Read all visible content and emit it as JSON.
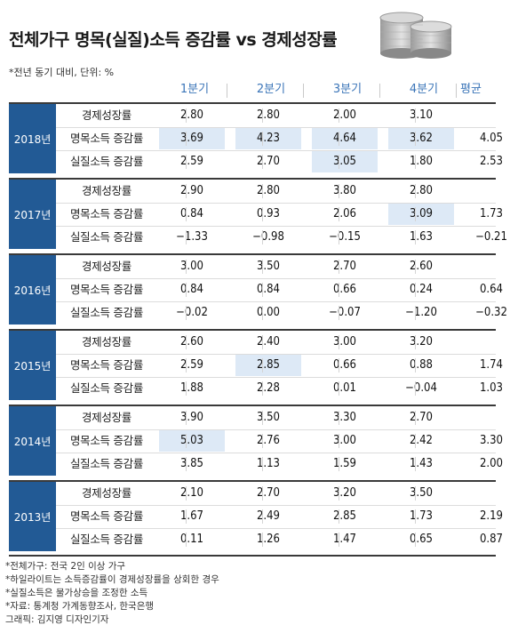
{
  "title": "전체가구 명목(실질)소득 증감률 vs 경제성장률",
  "subtitle": "*전년 동기 대비, 단위: %",
  "columns": [
    "1분기",
    "2분기",
    "3분기",
    "4분기",
    "평균"
  ],
  "colors": {
    "year_bg": "#225a95",
    "header_text": "#3b75b8",
    "highlight": "#dde9f6"
  },
  "groups": [
    {
      "year": "2018년",
      "rows": [
        {
          "label": "경제성장률",
          "values": [
            "2.80",
            "2.80",
            "2.00",
            "3.10",
            ""
          ]
        },
        {
          "label": "명목소득 증감률",
          "values": [
            "3.69",
            "4.23",
            "4.64",
            "3.62",
            "4.05"
          ]
        },
        {
          "label": "실질소득 증감률",
          "values": [
            "2.59",
            "2.70",
            "3.05",
            "1.80",
            "2.53"
          ]
        }
      ]
    },
    {
      "year": "2017년",
      "rows": [
        {
          "label": "경제성장률",
          "values": [
            "2.90",
            "2.80",
            "3.80",
            "2.80",
            ""
          ]
        },
        {
          "label": "명목소득 증감률",
          "values": [
            "0.84",
            "0.93",
            "2.06",
            "3.09",
            "1.73"
          ]
        },
        {
          "label": "실질소득 증감률",
          "values": [
            "−1.33",
            "−0.98",
            "−0.15",
            "1.63",
            "−0.21"
          ]
        }
      ]
    },
    {
      "year": "2016년",
      "rows": [
        {
          "label": "경제성장률",
          "values": [
            "3.00",
            "3.50",
            "2.70",
            "2.60",
            ""
          ]
        },
        {
          "label": "명목소득 증감률",
          "values": [
            "0.84",
            "0.84",
            "0.66",
            "0.24",
            "0.64"
          ]
        },
        {
          "label": "실질소득 증감률",
          "values": [
            "−0.02",
            "0.00",
            "−0.07",
            "−1.20",
            "−0.32"
          ]
        }
      ]
    },
    {
      "year": "2015년",
      "rows": [
        {
          "label": "경제성장률",
          "values": [
            "2.60",
            "2.40",
            "3.00",
            "3.20",
            ""
          ]
        },
        {
          "label": "명목소득 증감률",
          "values": [
            "2.59",
            "2.85",
            "0.66",
            "0.88",
            "1.74"
          ]
        },
        {
          "label": "실질소득 증감률",
          "values": [
            "1.88",
            "2.28",
            "0.01",
            "−0.04",
            "1.03"
          ]
        }
      ]
    },
    {
      "year": "2014년",
      "rows": [
        {
          "label": "경제성장률",
          "values": [
            "3.90",
            "3.50",
            "3.30",
            "2.70",
            ""
          ]
        },
        {
          "label": "명목소득 증감률",
          "values": [
            "5.03",
            "2.76",
            "3.00",
            "2.42",
            "3.30"
          ]
        },
        {
          "label": "실질소득 증감률",
          "values": [
            "3.85",
            "1.13",
            "1.59",
            "1.43",
            "2.00"
          ]
        }
      ]
    },
    {
      "year": "2013년",
      "rows": [
        {
          "label": "경제성장률",
          "values": [
            "2.10",
            "2.70",
            "3.20",
            "3.50",
            ""
          ]
        },
        {
          "label": "명목소득 증감률",
          "values": [
            "1.67",
            "2.49",
            "2.85",
            "1.73",
            "2.19"
          ]
        },
        {
          "label": "실질소득 증감률",
          "values": [
            "0.11",
            "1.26",
            "1.47",
            "0.65",
            "0.87"
          ]
        }
      ]
    }
  ],
  "notes": [
    "*전체가구: 전국 2인 이상 가구",
    "*하일라이트는 소득증감률이 경제성장률을 상회한 경우",
    "*실질소득은 물가상승을 조정한 소득",
    "*자료: 통계청 가계동향조사, 한국은행",
    "그래픽: 김지영 디자인기자"
  ]
}
